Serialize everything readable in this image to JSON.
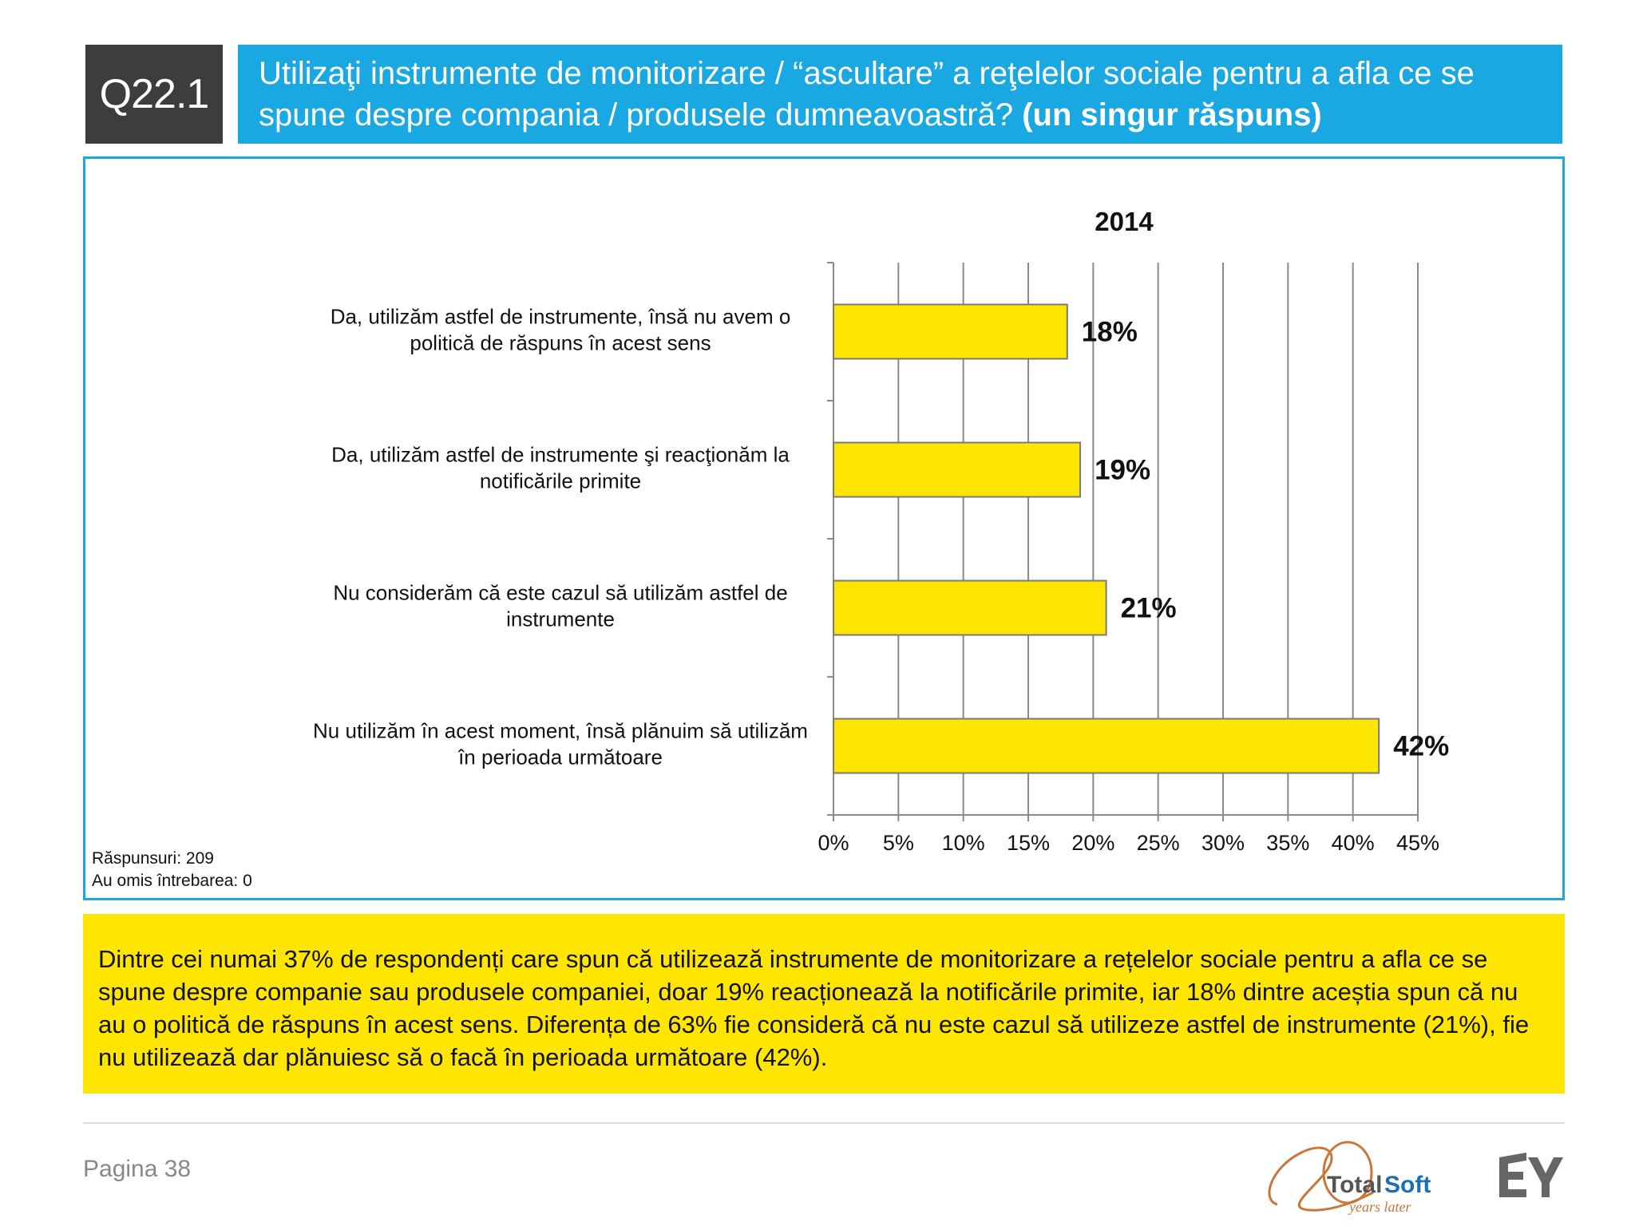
{
  "header": {
    "question_id": "Q22.1",
    "question_text": "Utilizaţi instrumente de monitorizare / “ascultare” a reţelelor sociale pentru a afla ce se spune despre compania / produsele dumneavoastră?",
    "question_note": "(un singur răspuns)"
  },
  "chart_data": {
    "type": "bar",
    "orientation": "horizontal",
    "title": "2014",
    "categories": [
      "Da, utilizăm astfel de instrumente, însă nu avem o politică de răspuns în acest sens",
      "Da, utilizăm astfel de instrumente şi reacţionăm la notificările primite",
      "Nu considerăm că este cazul să utilizăm astfel de instrumente",
      "Nu utilizăm în acest moment, însă plănuim să utilizăm în perioada următoare"
    ],
    "category_lines": [
      [
        "Da, utilizăm astfel de instrumente, însă nu avem o",
        "politică de răspuns în acest sens"
      ],
      [
        "Da, utilizăm astfel de instrumente şi reacţionăm la",
        "notificările primite"
      ],
      [
        "Nu considerăm că este cazul să utilizăm astfel de",
        "instrumente"
      ],
      [
        "Nu utilizăm în acest moment, însă plănuim să utilizăm",
        "în perioada următoare"
      ]
    ],
    "values": [
      18,
      19,
      21,
      42
    ],
    "data_labels": [
      "18%",
      "19%",
      "21%",
      "42%"
    ],
    "xlim": [
      0,
      45
    ],
    "xticks": [
      "0%",
      "5%",
      "10%",
      "15%",
      "20%",
      "25%",
      "30%",
      "35%",
      "40%",
      "45%"
    ],
    "grid": true,
    "bar_color": "#ffe600",
    "xlabel": "",
    "ylabel": ""
  },
  "responses": {
    "answered": "Răspunsuri: 209",
    "skipped": "Au omis întrebarea: 0"
  },
  "summary": {
    "text": "Dintre cei numai 37% de respondenți care spun că utilizează instrumente de monitorizare a rețelelor sociale pentru a afla ce se spune despre companie sau produsele companiei, doar 19% reacționează la notificările primite, iar 18% dintre aceștia spun că  nu au o politică de răspuns în acest sens. Diferența de 63% fie consideră că nu este cazul să utilizeze astfel de instrumente (21%), fie nu utilizează dar plănuiesc să o facă în perioada următoare (42%)."
  },
  "footer": {
    "page": "Pagina 38",
    "logo_totalsoft": "TotalSoft",
    "logo_totalsoft_sub": "years later",
    "logo_ey": "EY"
  },
  "colors": {
    "accent_blue": "#1aa8e2",
    "dark_box": "#3d3d3d",
    "yellow": "#ffe600"
  }
}
